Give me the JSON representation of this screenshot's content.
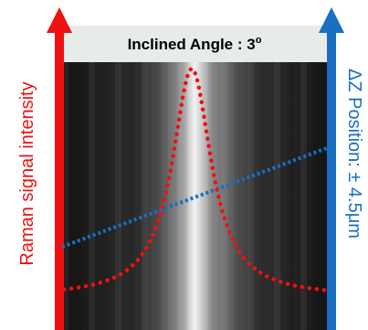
{
  "title": {
    "text": "Inclined Angle : 3",
    "superscript": "o"
  },
  "left_axis_label": "Raman signal intensity",
  "right_axis_label": "ΔZ Position: ± 4.5μm"
}
